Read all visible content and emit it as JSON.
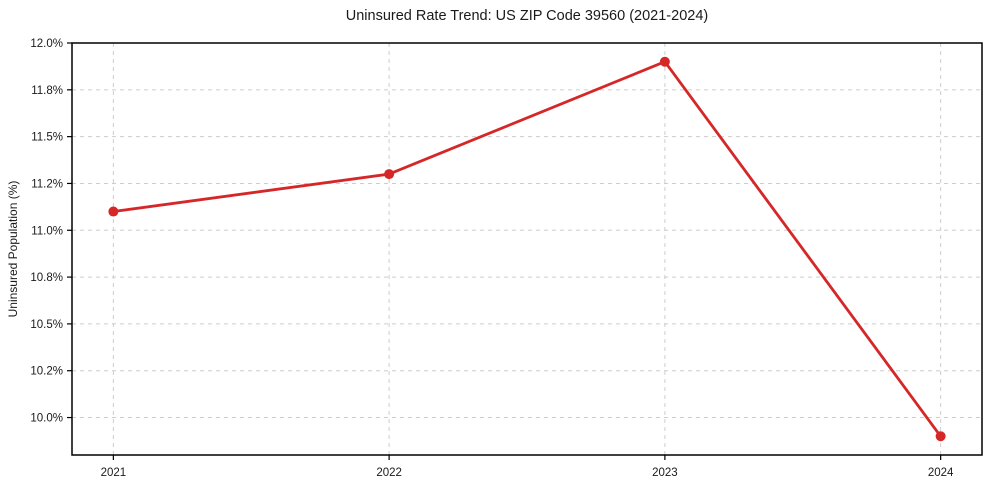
{
  "page": {
    "background": "#ffffff"
  },
  "chart_data": {
    "type": "line",
    "title": "Uninsured Rate Trend: US ZIP Code 39560 (2021-2024)",
    "xlabel": "",
    "ylabel": "Uninsured Population (%)",
    "categories": [
      "2021",
      "2022",
      "2023",
      "2024"
    ],
    "x": [
      2021,
      2022,
      2023,
      2024
    ],
    "series": [
      {
        "name": "Uninsured rate",
        "values": [
          11.1,
          11.3,
          11.9,
          9.9
        ]
      }
    ],
    "xlim": [
      2020.85,
      2024.15
    ],
    "ylim": [
      9.8,
      12.0
    ],
    "yticks": {
      "values": [
        10.0,
        10.25,
        10.5,
        10.75,
        11.0,
        11.25,
        11.5,
        11.75,
        12.0
      ],
      "labels": [
        "10.0%",
        "10.2%",
        "10.5%",
        "10.8%",
        "11.0%",
        "11.2%",
        "11.5%",
        "11.8%",
        "12.0%"
      ]
    },
    "grid": "dashed",
    "legend": "none",
    "marker": "circle",
    "colors": {
      "line": "#d62728",
      "marker": "#d62728",
      "grid": "#cdcdcd",
      "spine": "#000000",
      "text": "#1a1a1a"
    }
  }
}
